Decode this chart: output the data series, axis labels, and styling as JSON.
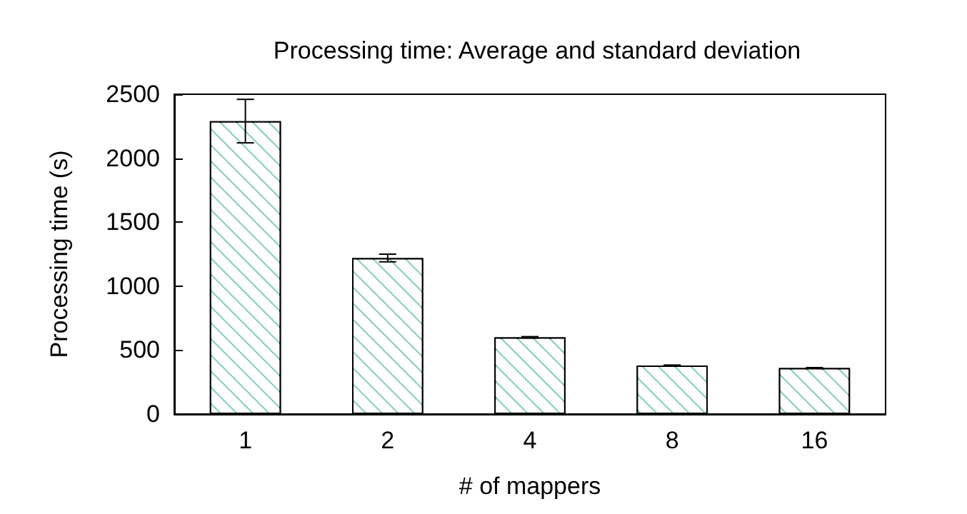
{
  "chart_data": {
    "type": "bar",
    "title": "Processing time: Average and standard deviation",
    "xlabel": "# of mappers",
    "ylabel": "Processing time (s)",
    "categories": [
      "1",
      "2",
      "4",
      "8",
      "16"
    ],
    "values": [
      2290,
      1220,
      600,
      380,
      360
    ],
    "errors": [
      170,
      30,
      5,
      3,
      3
    ],
    "color": "#7fcfc0",
    "ylim": [
      0,
      2500
    ],
    "yticks": [
      0,
      500,
      1000,
      1500,
      2000,
      2500
    ],
    "grid": false
  }
}
